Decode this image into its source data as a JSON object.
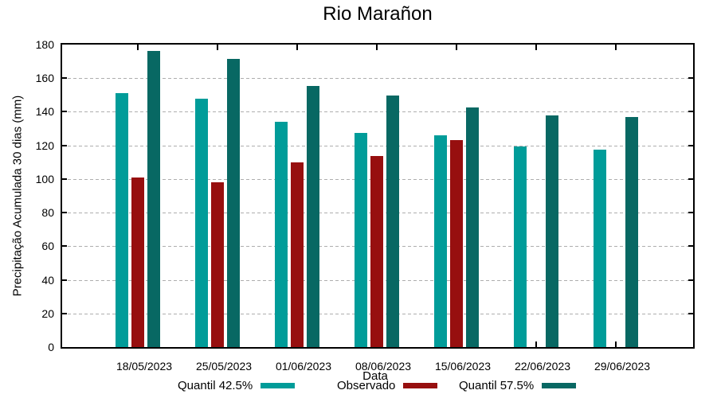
{
  "chart_data": {
    "type": "bar",
    "title": "Rio Marañon",
    "xlabel": "Data",
    "ylabel": "Precipitação Acumulada 30 dias (mm)",
    "ylim": [
      0,
      180
    ],
    "ytick_step": 20,
    "grid": true,
    "grid_color": "#aeaeae",
    "legend_position": "bottom",
    "categories": [
      "18/05/2023",
      "25/05/2023",
      "01/06/2023",
      "08/06/2023",
      "15/06/2023",
      "22/06/2023",
      "29/06/2023"
    ],
    "series": [
      {
        "name": "Quantil 42.5%",
        "color": "#009C99",
        "values": [
          151,
          148,
          134,
          127.5,
          126,
          119.5,
          117.5
        ]
      },
      {
        "name": "Observado",
        "color": "#970F0F",
        "values": [
          101,
          98,
          110,
          113.5,
          123,
          null,
          null
        ]
      },
      {
        "name": "Quantil 57.5%",
        "color": "#086863",
        "values": [
          176,
          171.5,
          155.5,
          149.5,
          142.5,
          138,
          137
        ]
      }
    ]
  }
}
